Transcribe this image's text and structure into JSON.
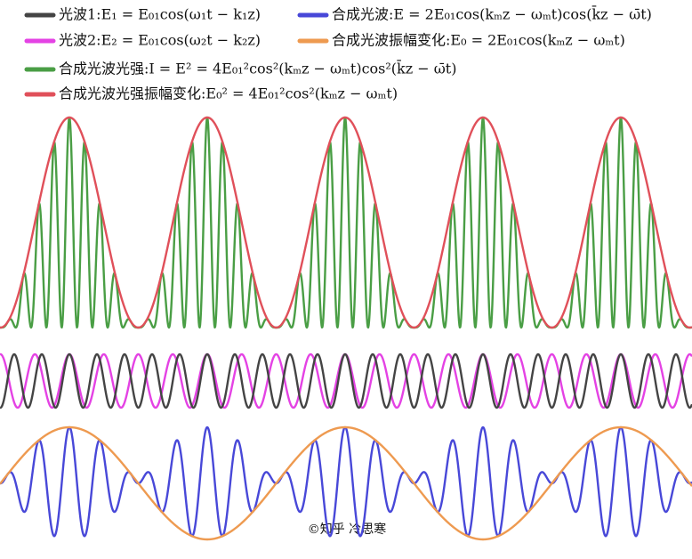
{
  "legend": {
    "items": [
      {
        "label": "光波1:E₁ = E₀₁cos(ω₁t − k₁z)",
        "color": "#444444"
      },
      {
        "label": "光波2:E₂ = E₀₁cos(ω₂t − k₂z)",
        "color": "#e442e4"
      },
      {
        "label": "合成光波光强:I = E² = 4E₀₁²cos²(kₘz − ωₘt)cos²(k̄z − ω̄t)",
        "color": "#4a9e45"
      },
      {
        "label": "合成光波光强振幅变化:E₀² = 4E₀₁²cos²(kₘz − ωₘt)",
        "color": "#e0505a"
      },
      {
        "label": "合成光波:E = 2E₀₁cos(kₘz − ωₘt)cos(k̄z − ω̄t)",
        "color": "#4848d8"
      },
      {
        "label": "合成光波振幅变化:E₀ = 2E₀₁cos(kₘz − ωₘt)",
        "color": "#ee9a50"
      }
    ]
  },
  "watermark": "©知乎 冷思寒"
}
